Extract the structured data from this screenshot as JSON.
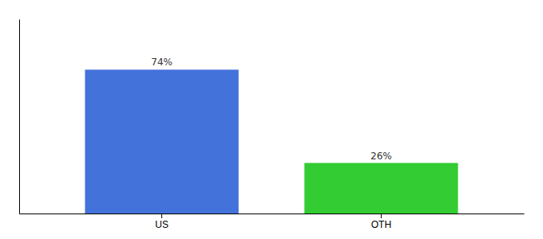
{
  "chart_data": {
    "type": "bar",
    "categories": [
      "US",
      "OTH"
    ],
    "values": [
      74,
      26
    ],
    "value_labels": [
      "74%",
      "26%"
    ],
    "colors": [
      "#4472db",
      "#33cc33"
    ],
    "ylim": [
      0,
      100
    ],
    "data_labels": true,
    "tick_labels": "x"
  }
}
